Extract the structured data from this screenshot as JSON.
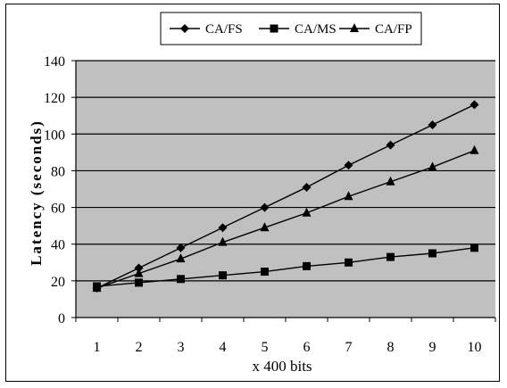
{
  "chart_data": {
    "type": "line",
    "title": "",
    "xlabel": "x 400 bits",
    "ylabel": "Latency (seconds)",
    "categories": [
      "1",
      "2",
      "3",
      "4",
      "5",
      "6",
      "7",
      "8",
      "9",
      "10"
    ],
    "x": [
      1,
      2,
      3,
      4,
      5,
      6,
      7,
      8,
      9,
      10
    ],
    "ylim": [
      0,
      140
    ],
    "yticks": [
      "0",
      "20",
      "40",
      "60",
      "80",
      "100",
      "120",
      "140"
    ],
    "grid": true,
    "legend_position": "top",
    "plot_background": "#c0c0c0",
    "series": [
      {
        "name": "CA/FS",
        "marker": "diamond",
        "values": [
          16,
          27,
          38,
          49,
          60,
          71,
          83,
          94,
          105,
          116
        ]
      },
      {
        "name": "CA/MS",
        "marker": "square",
        "values": [
          17,
          19,
          21,
          23,
          25,
          28,
          30,
          33,
          35,
          38
        ]
      },
      {
        "name": "CA/FP",
        "marker": "triangle",
        "values": [
          16,
          24,
          32,
          41,
          49,
          57,
          66,
          74,
          82,
          91
        ]
      }
    ]
  }
}
